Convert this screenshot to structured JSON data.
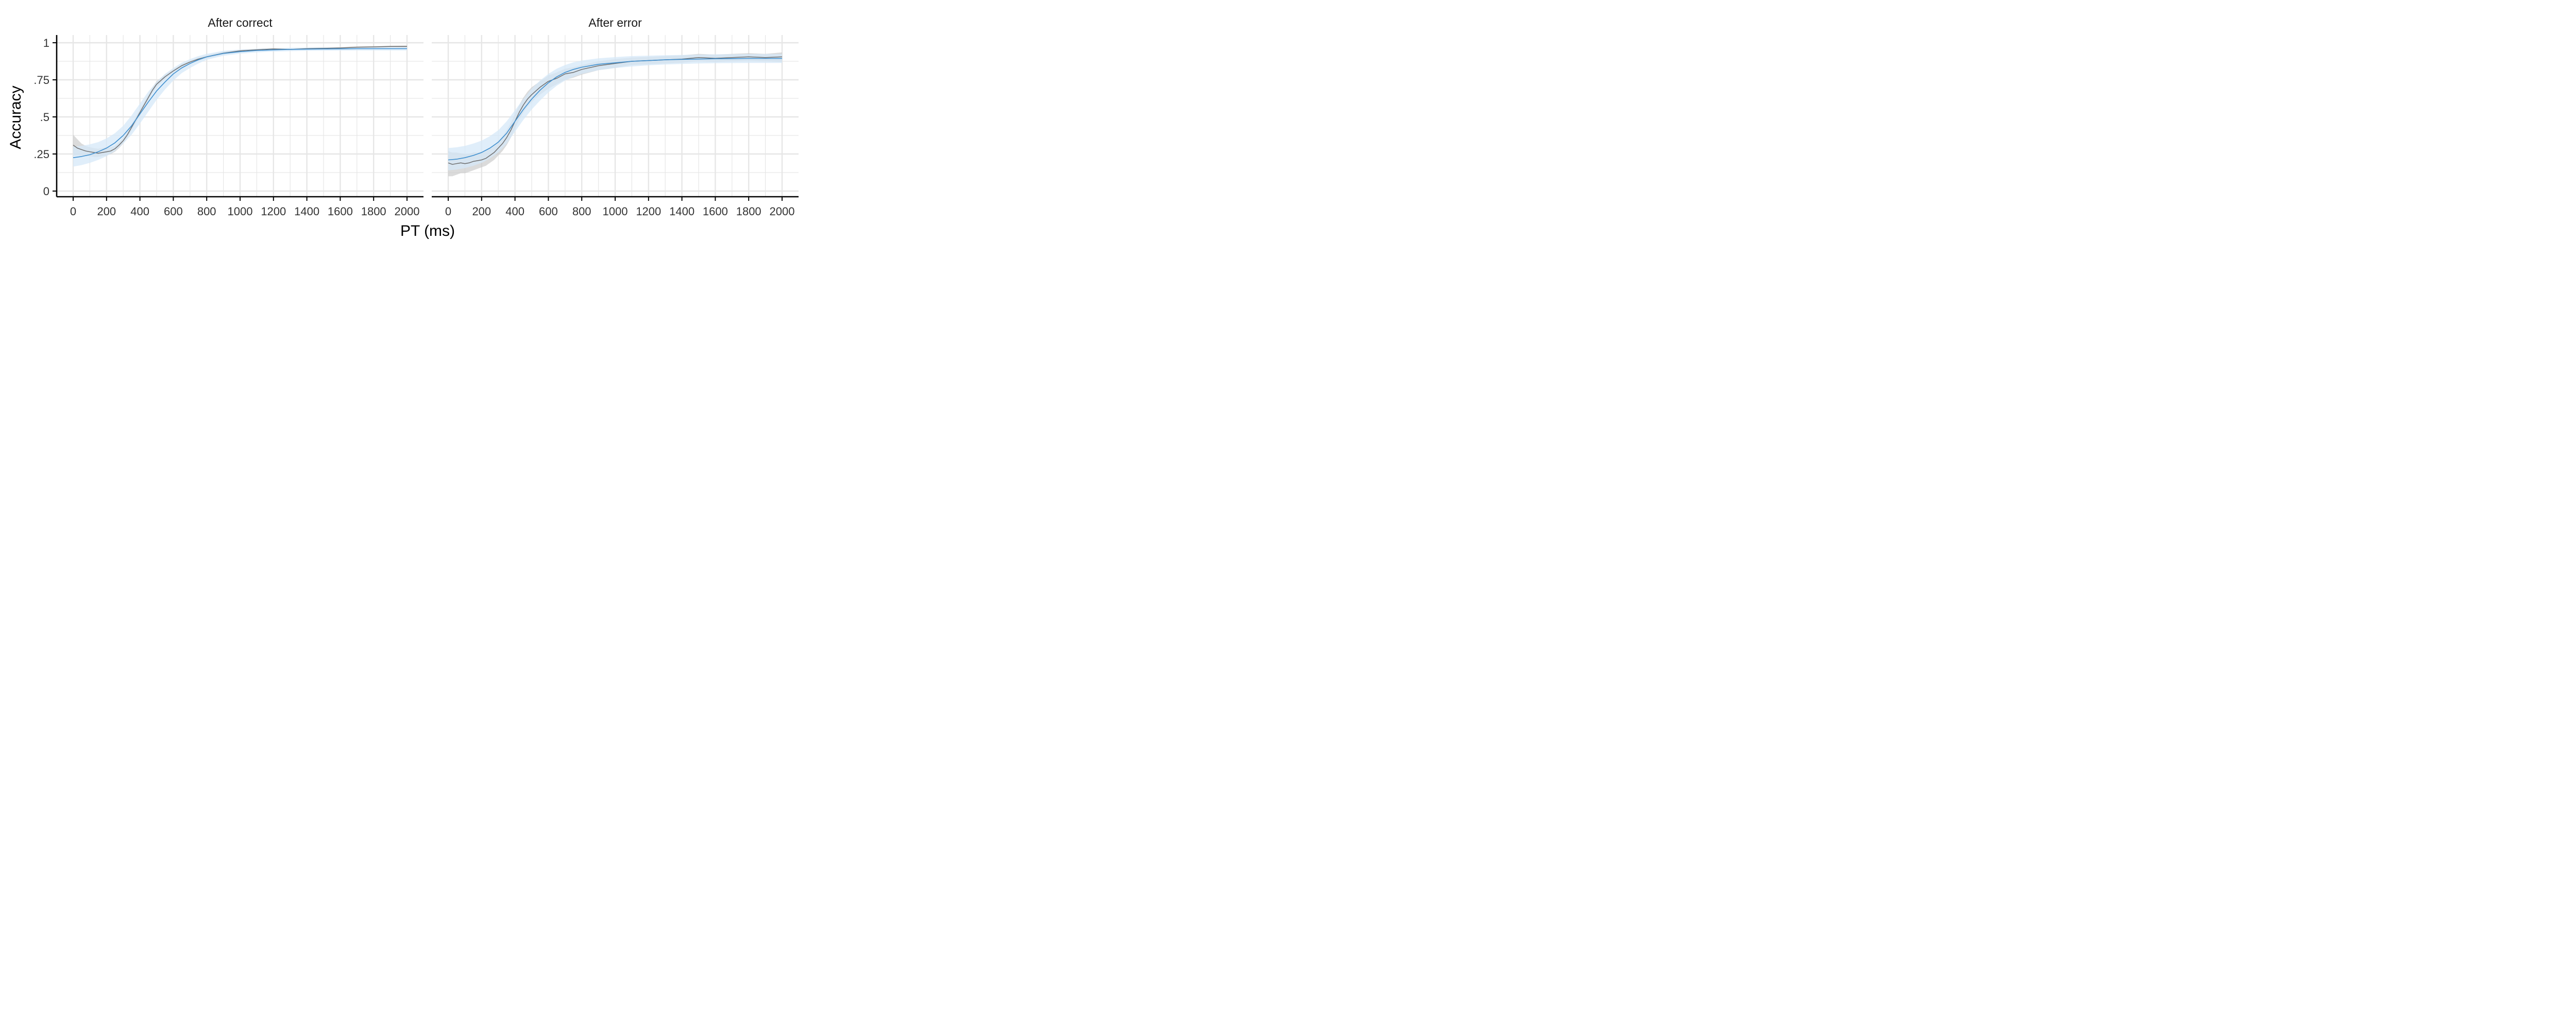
{
  "chart_data": {
    "type": "line",
    "xlabel": "PT (ms)",
    "ylabel": "Accuracy",
    "xlim": [
      0,
      2000
    ],
    "ylim": [
      0,
      1
    ],
    "x_ticks": [
      0,
      200,
      400,
      600,
      800,
      1000,
      1200,
      1400,
      1600,
      1800,
      2000
    ],
    "x_tick_labels": [
      "0",
      "200",
      "400",
      "600",
      "800",
      "1000",
      "1200",
      "1400",
      "1600",
      "1800",
      "2000"
    ],
    "y_ticks": [
      0,
      0.25,
      0.5,
      0.75,
      1
    ],
    "y_tick_labels": [
      "0",
      ".25",
      ".5",
      ".75",
      "1"
    ],
    "grid": true,
    "legend": "none",
    "colors": {
      "observed": "#6e6e6e",
      "observed_band": "#c8c8c8",
      "model": "#3f8fcf",
      "model_band": "#d6e8f8",
      "grid": "#e6e6e6",
      "axis": "#000000"
    },
    "panels": [
      {
        "title": "After correct",
        "series": [
          {
            "role": "observed",
            "x": [
              0,
              25,
              50,
              75,
              100,
              125,
              150,
              175,
              200,
              225,
              250,
              275,
              300,
              325,
              350,
              375,
              400,
              425,
              450,
              475,
              500,
              550,
              600,
              650,
              700,
              750,
              800,
              900,
              1000,
              1100,
              1200,
              1300,
              1400,
              1500,
              1600,
              1700,
              1800,
              1900,
              2000
            ],
            "y": [
              0.31,
              0.29,
              0.28,
              0.27,
              0.265,
              0.26,
              0.255,
              0.26,
              0.265,
              0.27,
              0.285,
              0.31,
              0.34,
              0.38,
              0.43,
              0.48,
              0.53,
              0.58,
              0.63,
              0.68,
              0.72,
              0.77,
              0.81,
              0.845,
              0.87,
              0.89,
              0.905,
              0.93,
              0.945,
              0.952,
              0.958,
              0.955,
              0.96,
              0.962,
              0.965,
              0.97,
              0.972,
              0.975,
              0.975
            ],
            "lower": [
              0.24,
              0.24,
              0.24,
              0.235,
              0.235,
              0.23,
              0.23,
              0.235,
              0.24,
              0.25,
              0.265,
              0.29,
              0.32,
              0.36,
              0.41,
              0.46,
              0.51,
              0.56,
              0.61,
              0.66,
              0.7,
              0.755,
              0.8,
              0.835,
              0.86,
              0.88,
              0.895,
              0.92,
              0.937,
              0.945,
              0.952,
              0.95,
              0.955,
              0.957,
              0.96,
              0.965,
              0.967,
              0.97,
              0.968
            ],
            "upper": [
              0.38,
              0.35,
              0.32,
              0.305,
              0.295,
              0.29,
              0.285,
              0.29,
              0.295,
              0.295,
              0.305,
              0.33,
              0.36,
              0.4,
              0.45,
              0.5,
              0.55,
              0.6,
              0.65,
              0.7,
              0.74,
              0.785,
              0.82,
              0.855,
              0.88,
              0.9,
              0.915,
              0.94,
              0.953,
              0.959,
              0.964,
              0.96,
              0.965,
              0.967,
              0.97,
              0.975,
              0.977,
              0.98,
              0.982
            ]
          },
          {
            "role": "model",
            "x": [
              0,
              50,
              100,
              150,
              200,
              250,
              300,
              350,
              400,
              450,
              500,
              550,
              600,
              650,
              700,
              750,
              800,
              900,
              1000,
              1100,
              1200,
              1300,
              1400,
              1500,
              1600,
              1700,
              1800,
              1900,
              2000
            ],
            "y": [
              0.225,
              0.233,
              0.245,
              0.265,
              0.29,
              0.325,
              0.375,
              0.44,
              0.52,
              0.6,
              0.675,
              0.735,
              0.79,
              0.83,
              0.86,
              0.885,
              0.905,
              0.928,
              0.94,
              0.948,
              0.952,
              0.955,
              0.957,
              0.958,
              0.959,
              0.96,
              0.96,
              0.96,
              0.96
            ],
            "lower": [
              0.165,
              0.175,
              0.19,
              0.21,
              0.235,
              0.27,
              0.32,
              0.38,
              0.455,
              0.535,
              0.615,
              0.685,
              0.745,
              0.795,
              0.83,
              0.86,
              0.885,
              0.912,
              0.926,
              0.935,
              0.94,
              0.943,
              0.945,
              0.946,
              0.947,
              0.948,
              0.948,
              0.948,
              0.948
            ],
            "upper": [
              0.3,
              0.305,
              0.315,
              0.33,
              0.355,
              0.39,
              0.44,
              0.51,
              0.59,
              0.67,
              0.735,
              0.79,
              0.83,
              0.865,
              0.89,
              0.91,
              0.925,
              0.945,
              0.954,
              0.96,
              0.963,
              0.966,
              0.968,
              0.969,
              0.97,
              0.971,
              0.971,
              0.971,
              0.971
            ]
          }
        ]
      },
      {
        "title": "After error",
        "series": [
          {
            "role": "observed",
            "x": [
              0,
              25,
              50,
              75,
              100,
              125,
              150,
              175,
              200,
              225,
              250,
              275,
              300,
              325,
              350,
              375,
              400,
              425,
              450,
              475,
              500,
              550,
              600,
              650,
              700,
              750,
              800,
              900,
              1000,
              1100,
              1200,
              1300,
              1400,
              1500,
              1600,
              1700,
              1800,
              1900,
              2000
            ],
            "y": [
              0.19,
              0.18,
              0.185,
              0.19,
              0.185,
              0.19,
              0.2,
              0.205,
              0.21,
              0.22,
              0.24,
              0.26,
              0.29,
              0.32,
              0.36,
              0.41,
              0.47,
              0.53,
              0.58,
              0.62,
              0.65,
              0.7,
              0.74,
              0.76,
              0.79,
              0.8,
              0.82,
              0.845,
              0.86,
              0.875,
              0.88,
              0.885,
              0.89,
              0.9,
              0.895,
              0.9,
              0.905,
              0.9,
              0.905
            ],
            "lower": [
              0.1,
              0.1,
              0.11,
              0.12,
              0.12,
              0.13,
              0.14,
              0.15,
              0.16,
              0.17,
              0.19,
              0.21,
              0.24,
              0.27,
              0.31,
              0.36,
              0.42,
              0.48,
              0.53,
              0.57,
              0.6,
              0.65,
              0.69,
              0.72,
              0.75,
              0.765,
              0.785,
              0.815,
              0.83,
              0.85,
              0.855,
              0.86,
              0.865,
              0.875,
              0.87,
              0.875,
              0.88,
              0.875,
              0.87
            ],
            "upper": [
              0.27,
              0.26,
              0.26,
              0.255,
              0.25,
              0.25,
              0.26,
              0.26,
              0.265,
              0.275,
              0.29,
              0.31,
              0.34,
              0.37,
              0.41,
              0.46,
              0.52,
              0.58,
              0.63,
              0.67,
              0.7,
              0.74,
              0.78,
              0.8,
              0.825,
              0.835,
              0.85,
              0.875,
              0.89,
              0.9,
              0.905,
              0.91,
              0.915,
              0.925,
              0.92,
              0.925,
              0.93,
              0.925,
              0.935
            ]
          },
          {
            "role": "model",
            "x": [
              0,
              50,
              100,
              150,
              200,
              250,
              300,
              350,
              400,
              450,
              500,
              550,
              600,
              650,
              700,
              750,
              800,
              900,
              1000,
              1100,
              1200,
              1300,
              1400,
              1500,
              1600,
              1700,
              1800,
              1900,
              2000
            ],
            "y": [
              0.21,
              0.215,
              0.225,
              0.24,
              0.26,
              0.29,
              0.33,
              0.39,
              0.47,
              0.55,
              0.62,
              0.68,
              0.73,
              0.77,
              0.8,
              0.82,
              0.835,
              0.855,
              0.865,
              0.875,
              0.88,
              0.885,
              0.888,
              0.89,
              0.892,
              0.893,
              0.894,
              0.894,
              0.894
            ],
            "lower": [
              0.14,
              0.145,
              0.155,
              0.17,
              0.19,
              0.22,
              0.26,
              0.32,
              0.4,
              0.48,
              0.55,
              0.61,
              0.665,
              0.71,
              0.745,
              0.77,
              0.79,
              0.815,
              0.83,
              0.84,
              0.848,
              0.853,
              0.857,
              0.86,
              0.862,
              0.863,
              0.864,
              0.864,
              0.864
            ],
            "upper": [
              0.29,
              0.295,
              0.305,
              0.32,
              0.34,
              0.37,
              0.41,
              0.47,
              0.545,
              0.62,
              0.69,
              0.745,
              0.79,
              0.825,
              0.85,
              0.868,
              0.88,
              0.895,
              0.903,
              0.91,
              0.913,
              0.916,
              0.918,
              0.92,
              0.922,
              0.923,
              0.924,
              0.924,
              0.924
            ]
          }
        ]
      }
    ]
  }
}
